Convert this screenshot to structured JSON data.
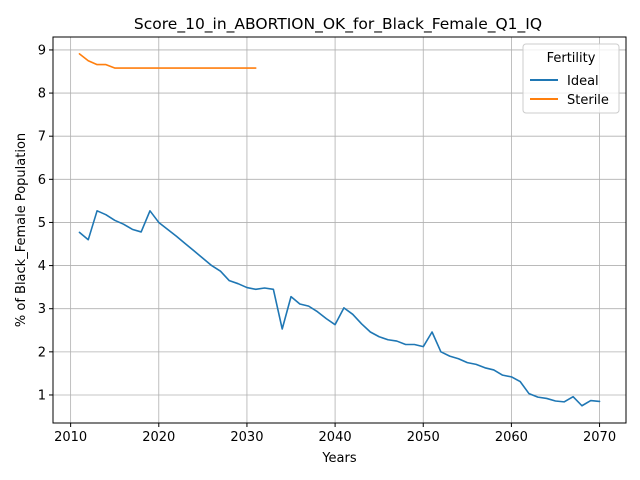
{
  "chart_data": {
    "type": "line",
    "title": "Score_10_in_ABORTION_OK_for_Black_Female_Q1_IQ",
    "xlabel": "Years",
    "ylabel": "% of Black_Female Population",
    "xlim": [
      2008,
      2073
    ],
    "ylim": [
      0.35,
      9.3
    ],
    "xticks": [
      "2010",
      "2020",
      "2030",
      "2040",
      "2050",
      "2060",
      "2070"
    ],
    "yticks": [
      "1",
      "2",
      "3",
      "4",
      "5",
      "6",
      "7",
      "8",
      "9"
    ],
    "grid": true,
    "legend": {
      "title": "Fertility",
      "placement": "top-right"
    },
    "series": [
      {
        "name": "Ideal",
        "color": "#1f77b4",
        "x": [
          2011,
          2012,
          2013,
          2014,
          2015,
          2016,
          2017,
          2018,
          2019,
          2020,
          2021,
          2022,
          2023,
          2024,
          2025,
          2026,
          2027,
          2028,
          2029,
          2030,
          2031,
          2032,
          2033,
          2034,
          2035,
          2036,
          2037,
          2038,
          2039,
          2040,
          2041,
          2042,
          2043,
          2044,
          2045,
          2046,
          2047,
          2048,
          2049,
          2050,
          2051,
          2052,
          2053,
          2054,
          2055,
          2056,
          2057,
          2058,
          2059,
          2060,
          2061,
          2062,
          2063,
          2064,
          2065,
          2066,
          2067,
          2068,
          2069,
          2070
        ],
        "values": [
          4.77,
          4.6,
          5.27,
          5.18,
          5.05,
          4.96,
          4.84,
          4.78,
          5.27,
          5.0,
          4.84,
          4.68,
          4.51,
          4.34,
          4.17,
          4.0,
          3.87,
          3.65,
          3.58,
          3.49,
          3.45,
          3.48,
          3.45,
          2.53,
          3.28,
          3.11,
          3.06,
          2.93,
          2.77,
          2.63,
          3.02,
          2.87,
          2.65,
          2.46,
          2.35,
          2.28,
          2.25,
          2.17,
          2.17,
          2.12,
          2.46,
          2.0,
          1.9,
          1.84,
          1.75,
          1.71,
          1.63,
          1.58,
          1.46,
          1.42,
          1.31,
          1.03,
          0.95,
          0.92,
          0.86,
          0.84,
          0.96,
          0.75,
          0.87,
          0.85
        ]
      },
      {
        "name": "Sterile",
        "color": "#ff7f0e",
        "x": [
          2011,
          2012,
          2013,
          2014,
          2015,
          2016,
          2017,
          2018,
          2019,
          2020,
          2021,
          2022,
          2023,
          2024,
          2025,
          2026,
          2027,
          2028,
          2029,
          2030,
          2031
        ],
        "values": [
          8.91,
          8.75,
          8.66,
          8.66,
          8.58,
          8.58,
          8.58,
          8.58,
          8.58,
          8.58,
          8.58,
          8.58,
          8.58,
          8.58,
          8.58,
          8.58,
          8.58,
          8.58,
          8.58,
          8.58,
          8.58
        ]
      }
    ]
  }
}
